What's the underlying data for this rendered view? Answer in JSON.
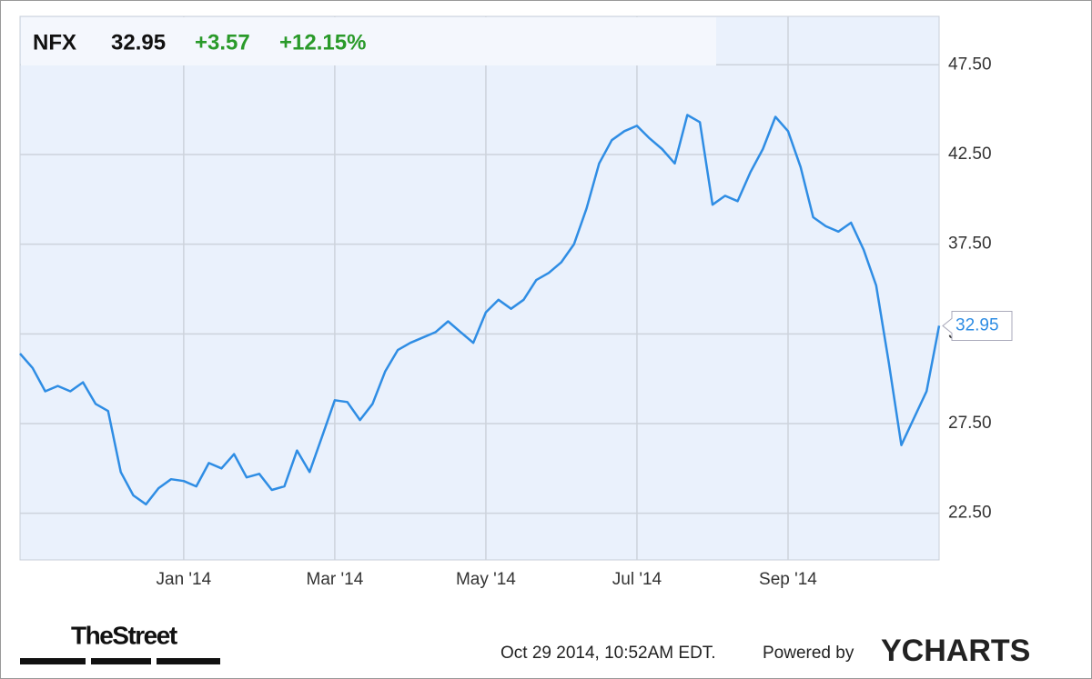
{
  "chart_data": {
    "type": "line",
    "ticker": "NFX",
    "price": "32.95",
    "change": "+3.57",
    "change_percent": "+12.15%",
    "categories": [
      null,
      null,
      null,
      null,
      null,
      null,
      null,
      null,
      null,
      null,
      null,
      null,
      null,
      "Jan '14",
      null,
      null,
      null,
      null,
      null,
      null,
      null,
      null,
      null,
      null,
      null,
      "Mar '14",
      null,
      null,
      null,
      null,
      null,
      null,
      null,
      null,
      null,
      null,
      null,
      "May '14",
      null,
      null,
      null,
      null,
      null,
      null,
      null,
      null,
      null,
      null,
      null,
      "Jul '14",
      null,
      null,
      null,
      null,
      null,
      null,
      null,
      null,
      null,
      null,
      null,
      "Sep '14",
      null,
      null,
      null,
      null,
      null,
      null,
      null,
      null,
      null,
      null,
      null,
      null
    ],
    "values": [
      31.4,
      30.6,
      29.3,
      29.6,
      29.3,
      29.8,
      28.6,
      28.2,
      24.8,
      23.5,
      23.0,
      23.9,
      24.4,
      24.3,
      24.0,
      25.3,
      25.0,
      25.8,
      24.5,
      24.7,
      23.8,
      24.0,
      26.0,
      24.8,
      26.8,
      28.8,
      28.7,
      27.7,
      28.6,
      30.4,
      31.6,
      32.0,
      32.3,
      32.6,
      33.2,
      32.6,
      32.0,
      33.7,
      34.4,
      33.9,
      34.4,
      35.5,
      35.9,
      36.5,
      37.5,
      39.5,
      42.0,
      43.3,
      43.8,
      44.1,
      43.4,
      42.8,
      42.0,
      44.7,
      44.3,
      39.7,
      40.2,
      39.9,
      41.5,
      42.8,
      44.6,
      43.8,
      41.8,
      39.0,
      38.5,
      38.2,
      38.7,
      37.2,
      35.2,
      30.9,
      26.3,
      27.8,
      29.3,
      32.95
    ],
    "value_labels": [
      null,
      null,
      null,
      null,
      null,
      null,
      null,
      null,
      null,
      null,
      null,
      null,
      null,
      null,
      null,
      null,
      null,
      null,
      null,
      null,
      null,
      null,
      null,
      null,
      null,
      null,
      null,
      null,
      null,
      null,
      null,
      null,
      null,
      null,
      null,
      null,
      null,
      null,
      null,
      null,
      null,
      null,
      null,
      null,
      null,
      null,
      null,
      null,
      null,
      null,
      null,
      null,
      null,
      null,
      null,
      null,
      null,
      null,
      null,
      null,
      null,
      null,
      null,
      null,
      null,
      null,
      null,
      null,
      null,
      null,
      null,
      null,
      null,
      "32.95"
    ],
    "color": "#2f8de4",
    "ylim": [
      19.9,
      50.2
    ],
    "yticks": [
      {
        "value": 22.5,
        "label": "22.50"
      },
      {
        "value": 27.5,
        "label": "27.50"
      },
      {
        "value": 32.5,
        "label": "32.50"
      },
      {
        "value": 37.5,
        "label": "37.50"
      },
      {
        "value": 42.5,
        "label": "42.50"
      },
      {
        "value": 47.5,
        "label": "47.50"
      }
    ],
    "grid": true
  },
  "footer": {
    "brand": "TheStreet",
    "timestamp": "Oct 29 2014, 10:52AM EDT.",
    "powered": "Powered by",
    "logo": "YCHARTS"
  }
}
